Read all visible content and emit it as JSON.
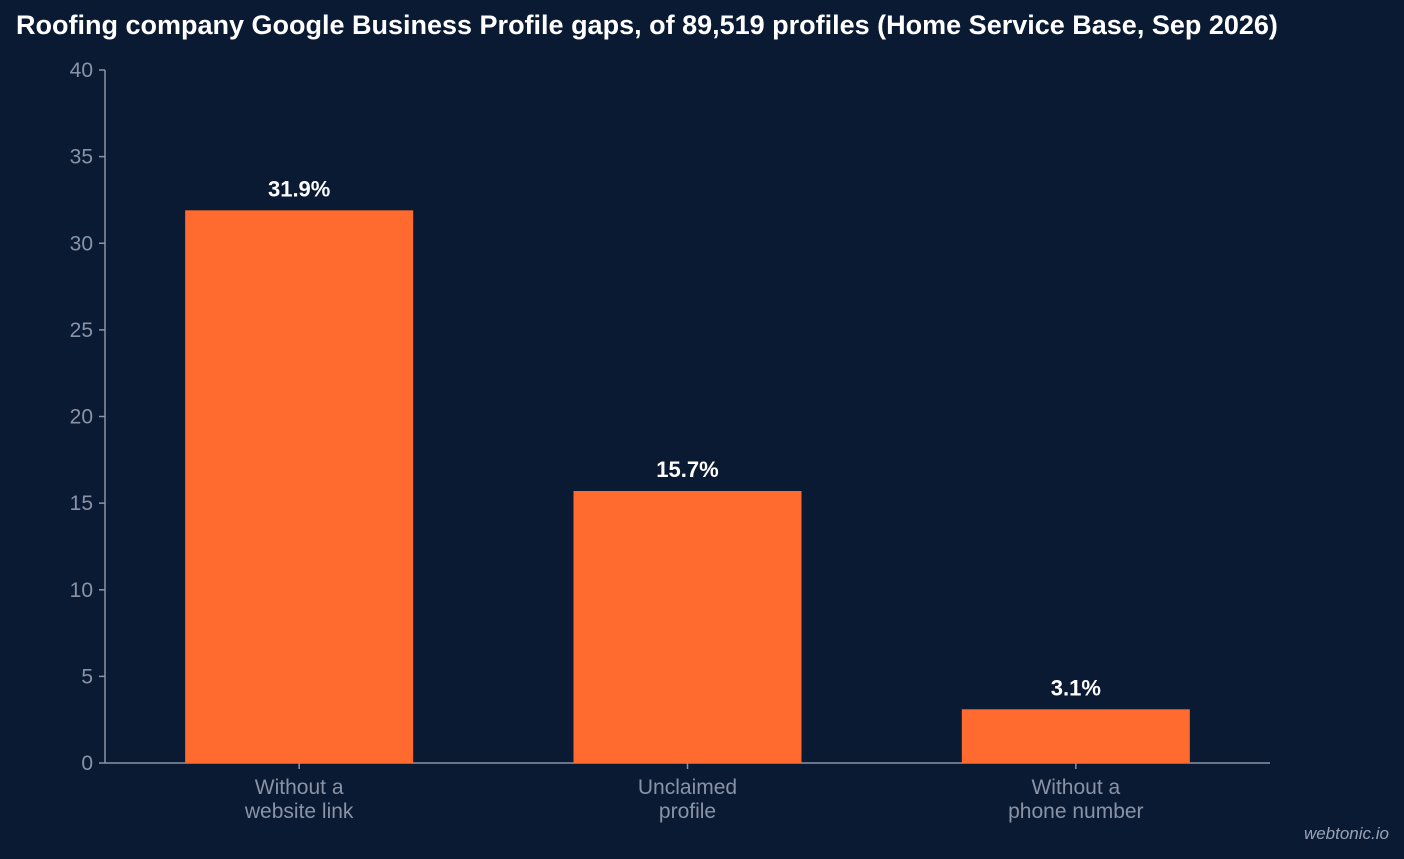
{
  "chart_data": {
    "type": "bar",
    "title": "Roofing company Google Business Profile gaps, of 89,519 profiles (Home Service Base, Sep 2026)",
    "categories": [
      [
        "Without a",
        "website link"
      ],
      [
        "Unclaimed",
        "profile"
      ],
      [
        "Without a",
        "phone number"
      ]
    ],
    "values": [
      31.9,
      15.7,
      3.1
    ],
    "data_labels": [
      "31.9%",
      "15.7%",
      "3.1%"
    ],
    "ylim": [
      0,
      40
    ],
    "yticks": [
      0,
      5,
      10,
      15,
      20,
      25,
      30,
      35,
      40
    ],
    "xlabel": "",
    "ylabel": "",
    "grid": false,
    "legend": "none"
  },
  "colors": {
    "background": "#0b1a33",
    "bar": "#ff6b2e",
    "axis": "#8a93a6",
    "tick_label": "#8a93a6",
    "data_label": "#ffffff",
    "title": "#ffffff"
  },
  "watermark": "webtonic.io"
}
